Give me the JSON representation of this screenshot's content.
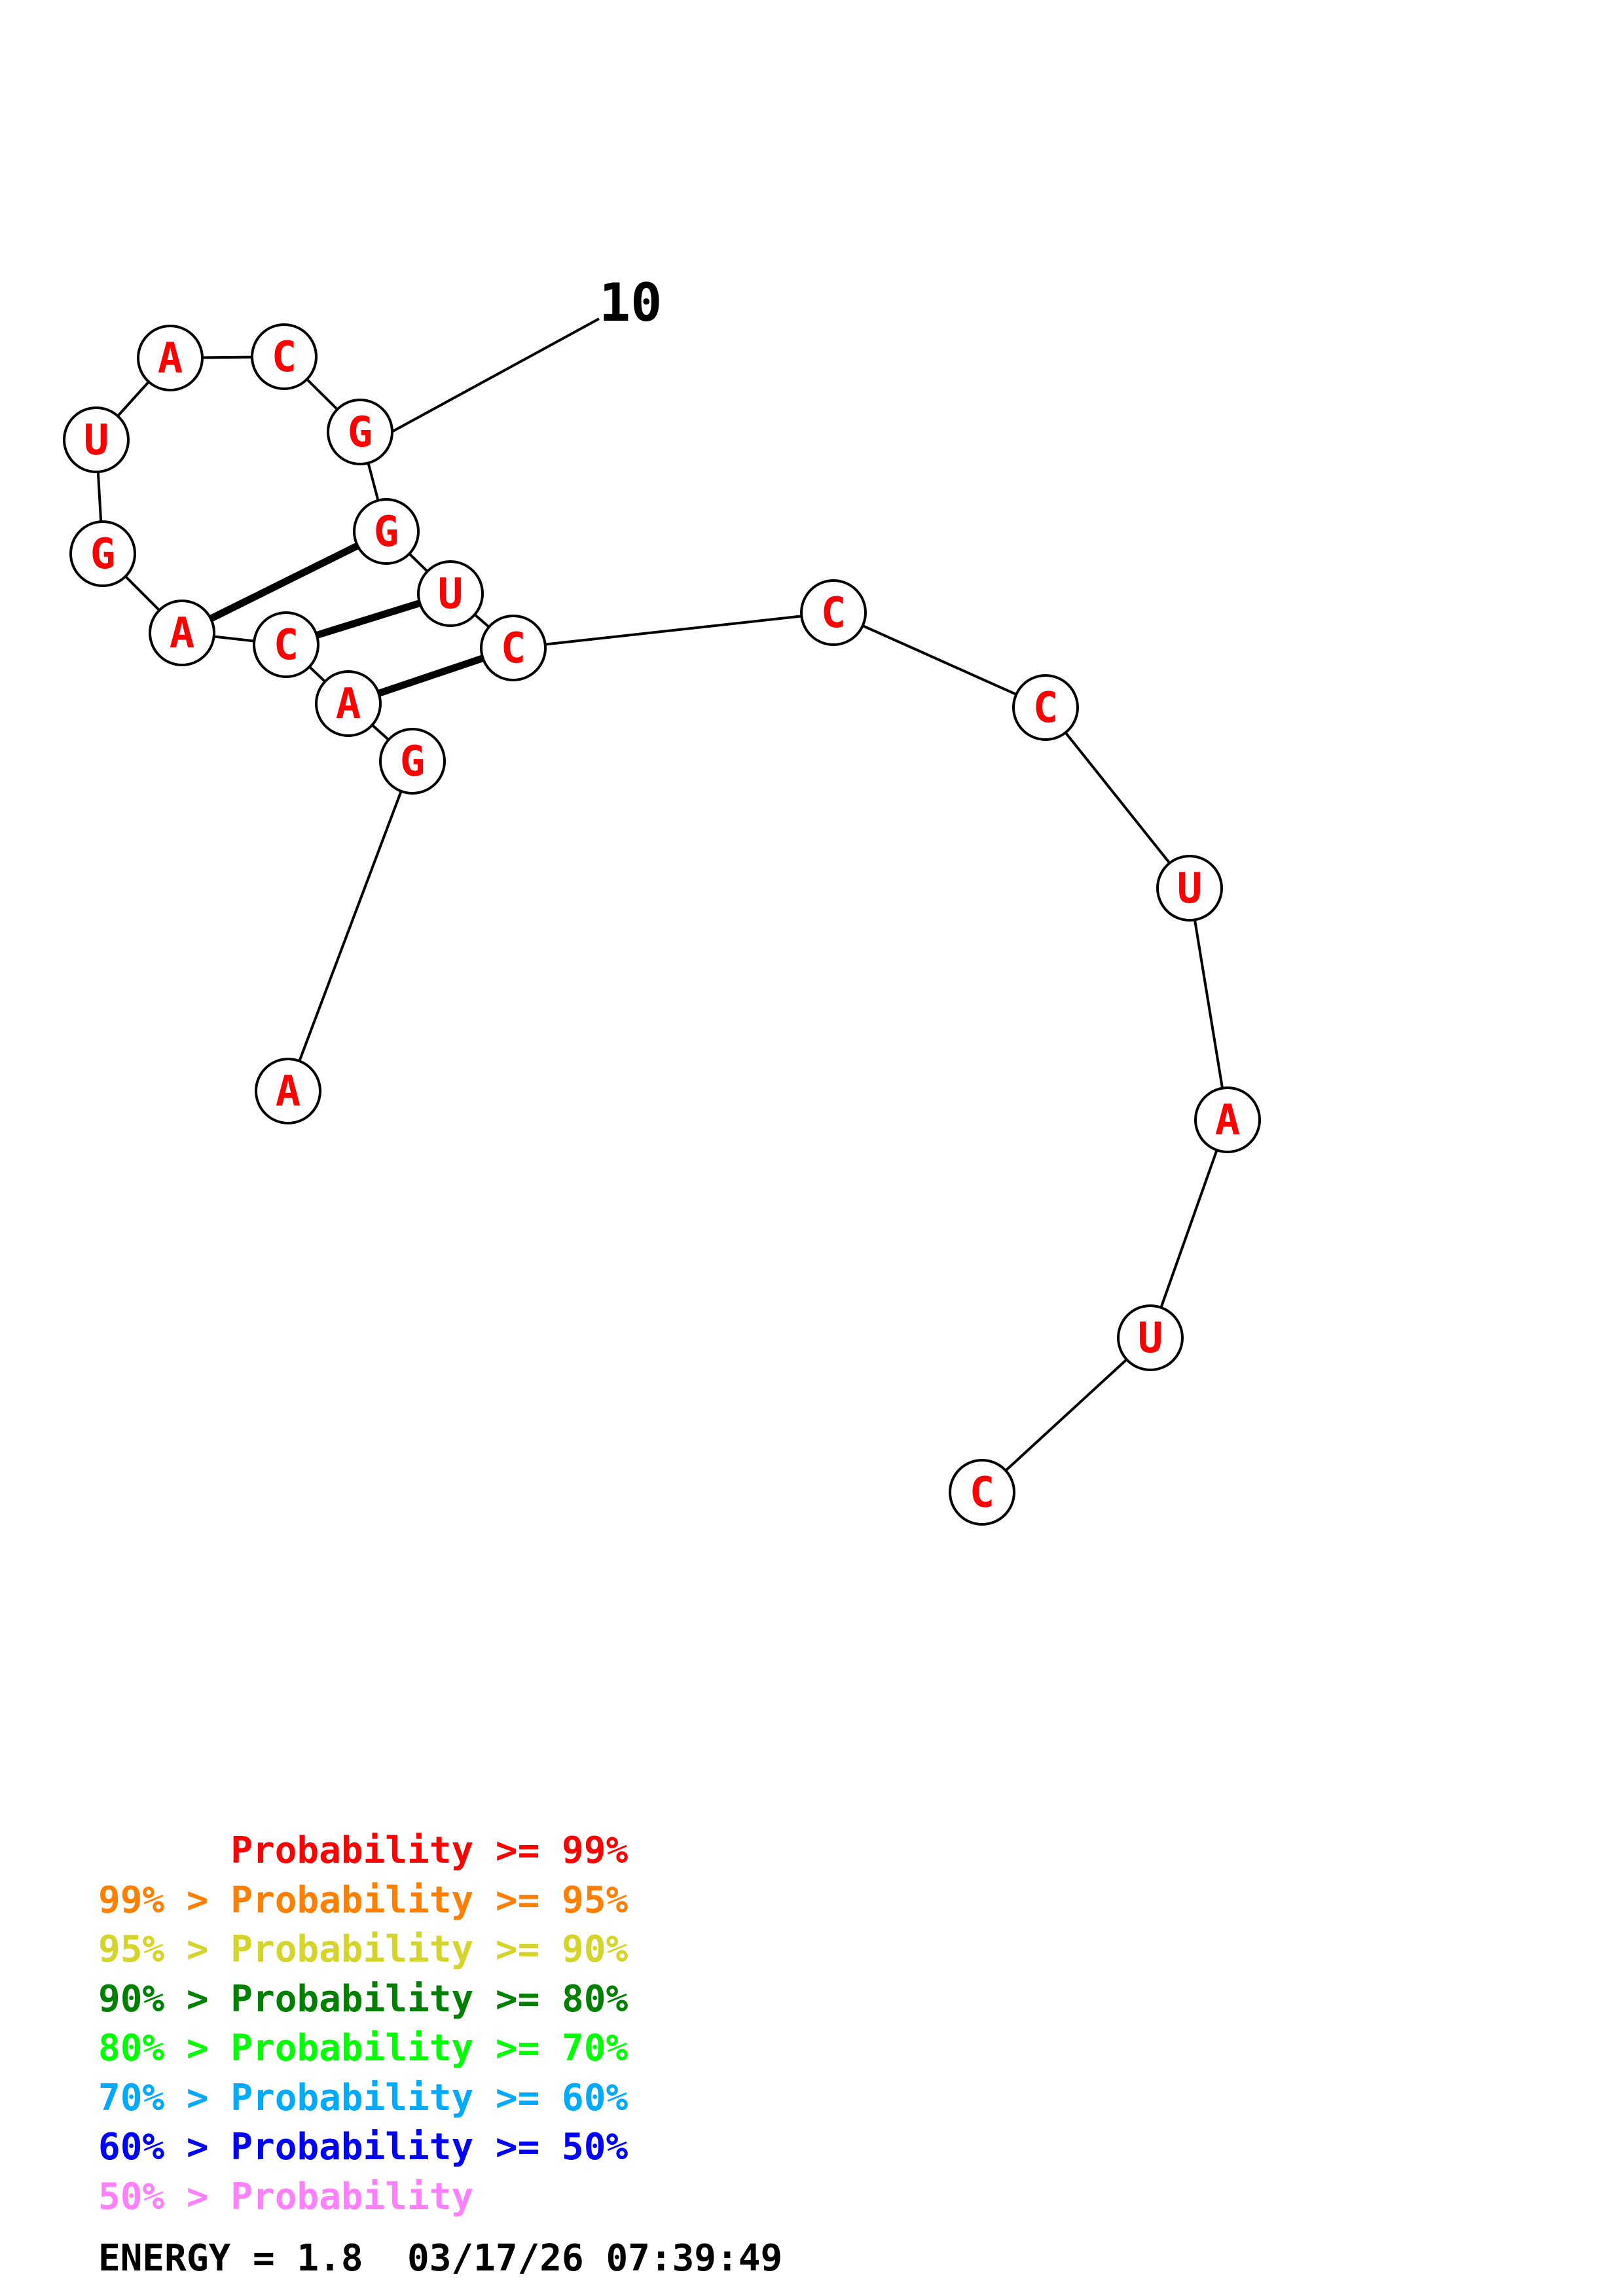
{
  "colors": {
    "nucleotide": "#ff0000",
    "stroke": "#000000",
    "fill": "#ffffff"
  },
  "sequence": [
    "A",
    "G",
    "A",
    "C",
    "A",
    "G",
    "U",
    "A",
    "C",
    "G",
    "G",
    "U",
    "C",
    "C",
    "C",
    "U",
    "A",
    "U",
    "C"
  ],
  "position_label": "10",
  "pairs": [
    [
      2,
      12
    ],
    [
      3,
      11
    ],
    [
      4,
      10
    ]
  ],
  "legend": [
    {
      "prefix": "      ",
      "text": "Probability >= 99%",
      "color": "#ff0000"
    },
    {
      "prefix": "99% > ",
      "text": "Probability >= 95%",
      "color": "#ff8000"
    },
    {
      "prefix": "95% > ",
      "text": "Probability >= 90%",
      "color": "#d4d42a"
    },
    {
      "prefix": "90% > ",
      "text": "Probability >= 80%",
      "color": "#008000"
    },
    {
      "prefix": "80% > ",
      "text": "Probability >= 70%",
      "color": "#00ff00"
    },
    {
      "prefix": "70% > ",
      "text": "Probability >= 60%",
      "color": "#00aaff"
    },
    {
      "prefix": "60% > ",
      "text": "Probability >= 50%",
      "color": "#0000ff"
    },
    {
      "prefix": "50% > ",
      "text": "Probability",
      "color": "#ff80ff"
    }
  ],
  "energy_line": "ENERGY = 1.8  03/17/26 07:39:49"
}
